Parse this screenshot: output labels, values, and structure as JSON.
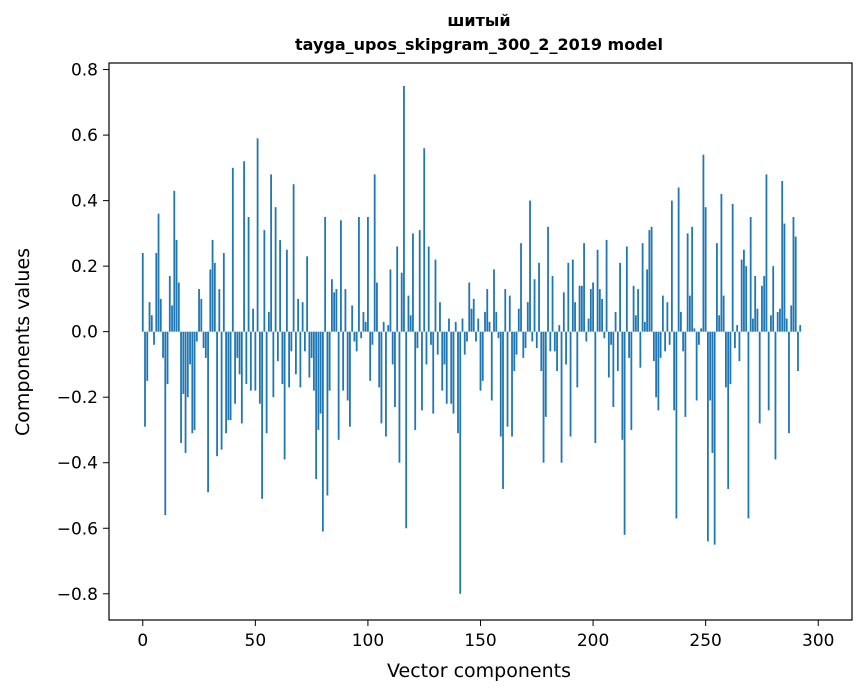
{
  "chart_data": {
    "type": "bar",
    "title_line1": "шитый",
    "title_line2": "tayga_upos_skipgram_300_2_2019 model",
    "xlabel": "Vector components",
    "ylabel": "Components values",
    "xlim": [
      -15,
      315
    ],
    "ylim": [
      -0.88,
      0.82
    ],
    "xticks": [
      0,
      50,
      100,
      150,
      200,
      250,
      300
    ],
    "yticks": [
      -0.8,
      -0.6,
      -0.4,
      -0.2,
      0.0,
      0.2,
      0.4,
      0.6,
      0.8
    ],
    "xtick_labels": [
      "0",
      "50",
      "100",
      "150",
      "200",
      "250",
      "300"
    ],
    "ytick_labels": [
      "−0.8",
      "−0.6",
      "−0.4",
      "−0.2",
      "0.0",
      "0.2",
      "0.4",
      "0.6",
      "0.8"
    ],
    "grid": false,
    "bar_color": "#1f77b4",
    "values": [
      0.24,
      -0.29,
      -0.15,
      0.09,
      0.05,
      -0.04,
      0.24,
      0.36,
      0.1,
      -0.08,
      -0.56,
      -0.16,
      0.17,
      0.08,
      0.43,
      0.28,
      0.15,
      -0.34,
      -0.19,
      -0.37,
      -0.2,
      -0.1,
      -0.31,
      -0.3,
      -0.03,
      0.13,
      0.1,
      -0.05,
      -0.08,
      -0.49,
      0.19,
      0.28,
      0.21,
      -0.38,
      0.13,
      -0.36,
      0.24,
      -0.31,
      -0.27,
      -0.27,
      0.5,
      -0.22,
      -0.08,
      -0.13,
      -0.28,
      0.52,
      -0.16,
      0.35,
      -0.18,
      0.07,
      -0.18,
      0.59,
      -0.22,
      -0.51,
      0.31,
      -0.31,
      0.06,
      0.48,
      -0.2,
      0.38,
      -0.09,
      0.28,
      -0.16,
      -0.39,
      0.25,
      -0.17,
      -0.06,
      0.45,
      -0.13,
      0.1,
      -0.17,
      0.09,
      -0.06,
      0.23,
      -0.14,
      -0.08,
      -0.18,
      -0.45,
      -0.3,
      -0.25,
      -0.61,
      0.35,
      -0.5,
      -0.18,
      0.16,
      0.12,
      0.13,
      -0.33,
      0.34,
      -0.18,
      0.13,
      -0.21,
      -0.29,
      0.08,
      -0.03,
      -0.06,
      0.35,
      -0.02,
      0.06,
      0.03,
      0.35,
      -0.15,
      -0.04,
      0.48,
      0.15,
      -0.17,
      -0.28,
      0.03,
      -0.32,
      0.02,
      0.19,
      -0.1,
      -0.23,
      0.26,
      -0.4,
      0.18,
      0.75,
      -0.6,
      0.11,
      0.05,
      0.3,
      -0.3,
      -0.05,
      0.31,
      -0.24,
      0.56,
      -0.1,
      0.26,
      -0.04,
      -0.25,
      0.22,
      -0.07,
      0.09,
      -0.18,
      -0.1,
      -0.22,
      0.04,
      -0.22,
      -0.25,
      0.03,
      -0.31,
      -0.8,
      0.04,
      -0.07,
      -0.03,
      0.15,
      0.07,
      0.1,
      -0.03,
      0.04,
      -0.18,
      -0.15,
      0.06,
      0.13,
      0.03,
      -0.21,
      0.19,
      0.06,
      -0.02,
      -0.32,
      -0.48,
      0.13,
      -0.29,
      0.11,
      -0.32,
      -0.12,
      -0.07,
      0.07,
      0.27,
      -0.08,
      -0.05,
      0.09,
      0.4,
      -0.03,
      0.16,
      -0.05,
      0.21,
      -0.12,
      -0.4,
      -0.26,
      0.32,
      -0.06,
      0.17,
      -0.06,
      -0.12,
      0.02,
      -0.4,
      0.12,
      -0.1,
      0.21,
      -0.32,
      0.22,
      0.09,
      -0.17,
      0.14,
      0.14,
      0.27,
      -0.03,
      0.04,
      0.13,
      0.15,
      -0.34,
      0.25,
      0.13,
      0.1,
      -0.02,
      0.28,
      -0.14,
      -0.04,
      -0.23,
      0.06,
      -0.12,
      0.21,
      -0.33,
      -0.62,
      0.26,
      -0.08,
      -0.3,
      0.14,
      0.05,
      0.13,
      -0.11,
      0.27,
      0.03,
      0.19,
      0.31,
      0.32,
      -0.09,
      -0.2,
      -0.24,
      -0.08,
      0.11,
      -0.06,
      0.09,
      -0.04,
      0.4,
      -0.24,
      -0.57,
      0.44,
      0.06,
      -0.06,
      -0.26,
      0.3,
      0.11,
      0.32,
      0.01,
      -0.21,
      -0.04,
      0.01,
      0.54,
      0.38,
      -0.64,
      -0.21,
      -0.37,
      -0.65,
      0.27,
      0.05,
      0.42,
      0.11,
      -0.17,
      -0.48,
      -0.16,
      0.39,
      -0.05,
      0.02,
      -0.09,
      0.22,
      0.25,
      0.2,
      -0.57,
      0.35,
      0.04,
      0.17,
      0.07,
      -0.28,
      0.14,
      0.17,
      0.48,
      -0.24,
      0.05,
      0.2,
      -0.39,
      0.06,
      0.07,
      0.46,
      0.33,
      0.04,
      -0.31,
      0.08,
      0.35,
      0.29,
      -0.12,
      0.02
    ]
  }
}
